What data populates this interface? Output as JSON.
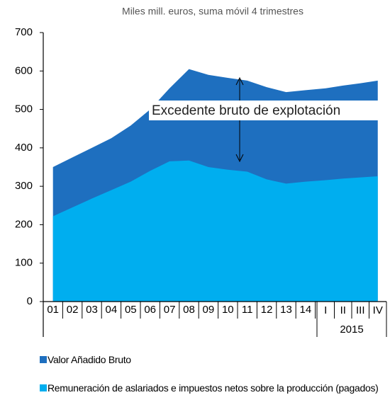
{
  "chart_data": {
    "type": "area",
    "title": "Miles mill. euros, suma móvil 4 trimestres",
    "categories": [
      "01",
      "02",
      "03",
      "04",
      "05",
      "06",
      "07",
      "08",
      "09",
      "10",
      "11",
      "12",
      "13",
      "14",
      "I",
      "II",
      "III",
      "IV"
    ],
    "category_group_label": "2015",
    "series": [
      {
        "name": "Valor Añadido Bruto",
        "color": "#1e6fbf",
        "values": [
          350,
          375,
          400,
          425,
          458,
          500,
          555,
          605,
          590,
          582,
          575,
          558,
          545,
          550,
          555,
          562,
          568,
          575
        ]
      },
      {
        "name": "Remuneración de aslariados e impuestos netos sobre la producción (pagados)",
        "color": "#00aeef",
        "values": [
          222,
          245,
          268,
          290,
          312,
          340,
          365,
          367,
          350,
          343,
          338,
          318,
          307,
          312,
          316,
          320,
          323,
          326
        ]
      }
    ],
    "annotation": "Excedente bruto de explotación",
    "ylim": [
      0,
      700
    ],
    "yticks": [
      0,
      100,
      200,
      300,
      400,
      500,
      600,
      700
    ]
  }
}
